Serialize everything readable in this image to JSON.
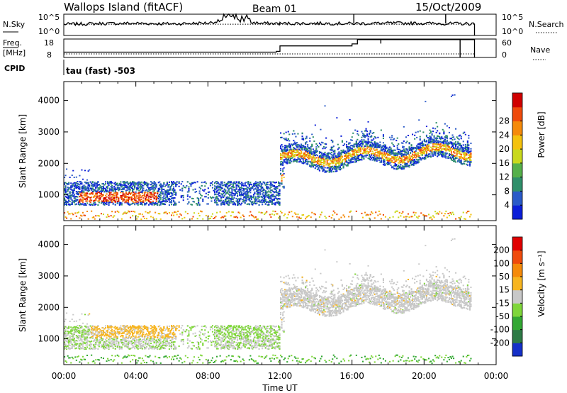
{
  "header": {
    "station": "Wallops Island (fitACF)",
    "beam": "Beam 01",
    "date": "15/Oct/2009"
  },
  "strips": {
    "nsky": {
      "label": "N.Sky",
      "left_ticks": [
        "10^5",
        "10^0"
      ],
      "right_ticks": [
        "10^5",
        "10^0"
      ],
      "right_label": "N.Search",
      "nsky_levels": [
        [
          0,
          0.55
        ],
        [
          2,
          0.6
        ],
        [
          4,
          0.62
        ],
        [
          6,
          0.58
        ],
        [
          8,
          0.64
        ],
        [
          9,
          0.9
        ],
        [
          10,
          0.72
        ],
        [
          11,
          0.62
        ],
        [
          12,
          0.6
        ],
        [
          14,
          0.62
        ],
        [
          16,
          0.6
        ],
        [
          18,
          0.63
        ],
        [
          20,
          0.62
        ],
        [
          21.3,
          0.6
        ],
        [
          22.8,
          0.58
        ]
      ],
      "search_level": 0.55,
      "spike_hours": [
        16.1,
        21.2
      ]
    },
    "freq": {
      "label": "Freq.",
      "unit": "[MHz]",
      "left_ticks": [
        "18",
        "8"
      ],
      "right_ticks": [
        "60",
        "0"
      ],
      "right_label": "Nave",
      "freq_steps": [
        [
          0,
          10.5
        ],
        [
          11.8,
          11.0
        ],
        [
          12.0,
          14.5
        ],
        [
          16.0,
          15.8
        ],
        [
          16.3,
          18.5
        ],
        [
          22.8,
          18.5
        ]
      ],
      "nave_level": 0.0,
      "nave_drops": [
        17.6,
        22.0
      ]
    },
    "cpid": {
      "label": "CPID",
      "text": "tau (fast) -503"
    }
  },
  "chart_data": [
    {
      "type": "heatmap",
      "name": "Power",
      "xlabel": "",
      "ylabel": "Slant Range [km]",
      "x_range_hours": [
        0,
        24
      ],
      "y_range_km": [
        180,
        4600
      ],
      "y_ticks": [
        1000,
        2000,
        3000,
        4000
      ],
      "colorbar": {
        "label": "Power [dB]",
        "ticks": [
          "4",
          "8",
          "12",
          "16",
          "20",
          "24",
          "28"
        ],
        "colors": [
          "#0b1ed8",
          "#2a5ac8",
          "#2f8f6a",
          "#55b04a",
          "#c9d91c",
          "#f4c20d",
          "#f58a0a",
          "#ef4b0c",
          "#d00000"
        ]
      }
    },
    {
      "type": "heatmap",
      "name": "Velocity",
      "xlabel": "Time UT",
      "ylabel": "Slant Range [km]",
      "x_range_hours": [
        0,
        24
      ],
      "x_ticks": [
        "00:00",
        "04:00",
        "08:00",
        "12:00",
        "16:00",
        "20:00",
        "00:00"
      ],
      "y_range_km": [
        180,
        4600
      ],
      "y_ticks": [
        1000,
        2000,
        3000,
        4000
      ],
      "colorbar": {
        "label": "Velocity [m s⁻¹]",
        "ticks": [
          "200",
          "100",
          "50",
          "15",
          "-15",
          "-50",
          "-100",
          "-200"
        ],
        "colors": [
          "#1530c8",
          "#2e7a46",
          "#33a833",
          "#7fd63a",
          "#c8c8c8",
          "#f7b520",
          "#f58a0a",
          "#ef4b0c",
          "#e00000"
        ]
      }
    }
  ]
}
